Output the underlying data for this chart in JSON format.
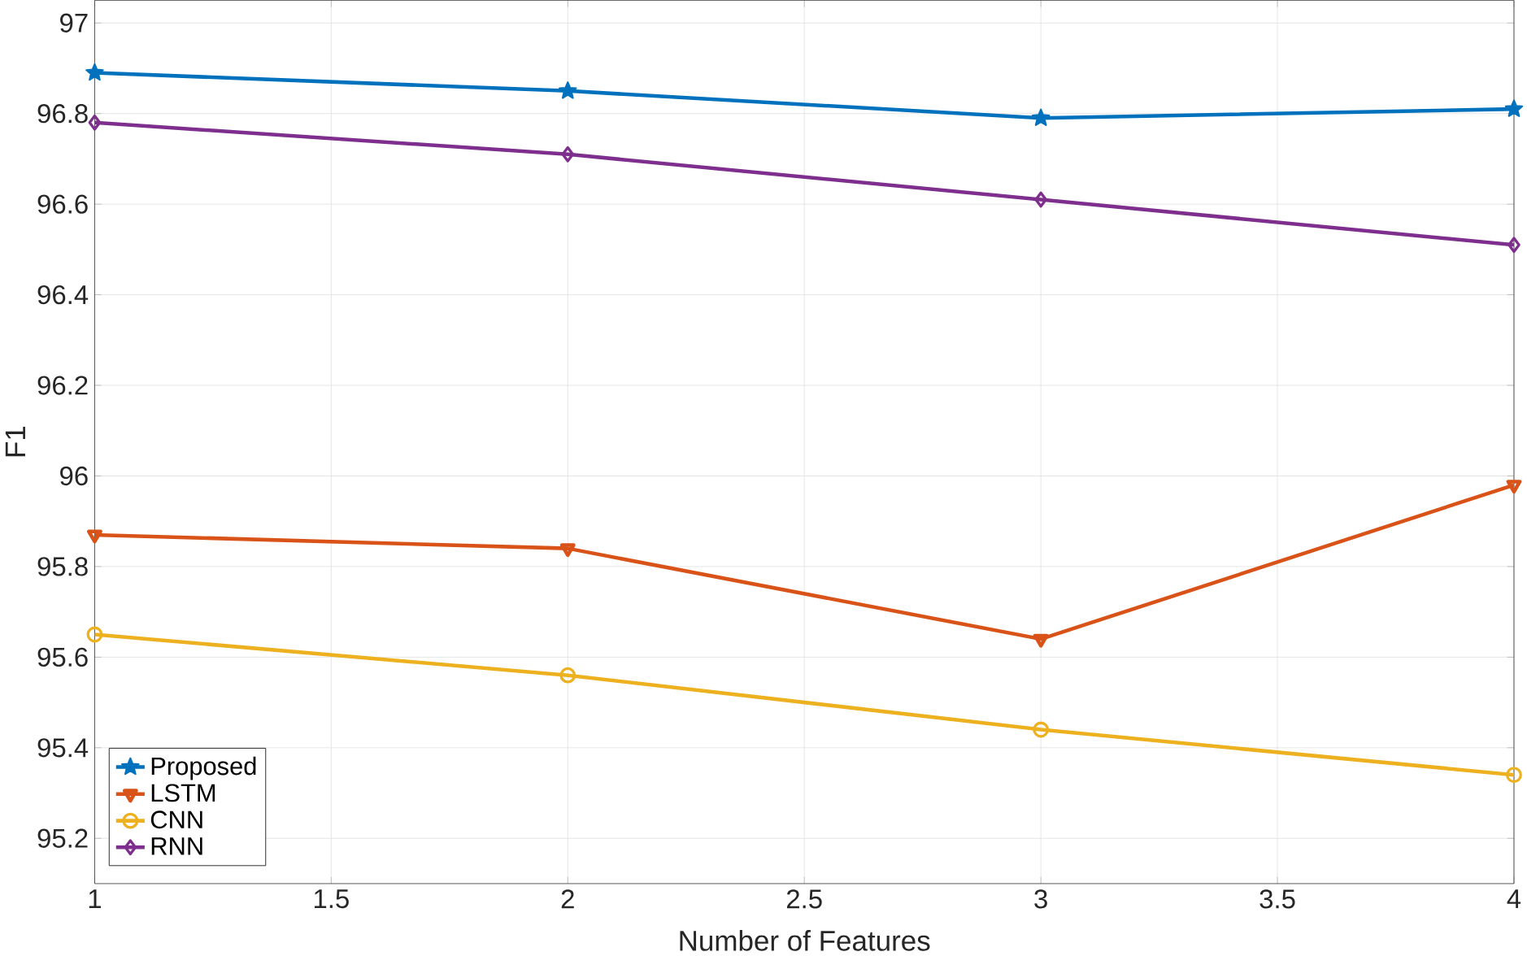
{
  "chart_data": {
    "type": "line",
    "xlabel": "Number of Features",
    "ylabel": "F1",
    "x": [
      1,
      2,
      3,
      4
    ],
    "series": [
      {
        "name": "Proposed",
        "color": "#0072bd",
        "marker": "star",
        "values": [
          96.89,
          96.85,
          96.79,
          96.81
        ]
      },
      {
        "name": "LSTM",
        "color": "#d95319",
        "marker": "triangle",
        "values": [
          95.87,
          95.84,
          95.64,
          95.98
        ]
      },
      {
        "name": "CNN",
        "color": "#edb120",
        "marker": "circle",
        "values": [
          95.65,
          95.56,
          95.44,
          95.34
        ]
      },
      {
        "name": "RNN",
        "color": "#7e2f8e",
        "marker": "diamond",
        "values": [
          96.78,
          96.71,
          96.61,
          96.51
        ]
      }
    ],
    "xlim": [
      1,
      4
    ],
    "ylim": [
      95.1,
      97.05
    ],
    "xticks": [
      1,
      1.5,
      2,
      2.5,
      3,
      3.5,
      4
    ],
    "yticks": [
      95.2,
      95.4,
      95.6,
      95.8,
      96,
      96.2,
      96.4,
      96.6,
      96.8,
      97
    ],
    "grid": true,
    "legend": "bottom left",
    "line_style": "solid"
  }
}
